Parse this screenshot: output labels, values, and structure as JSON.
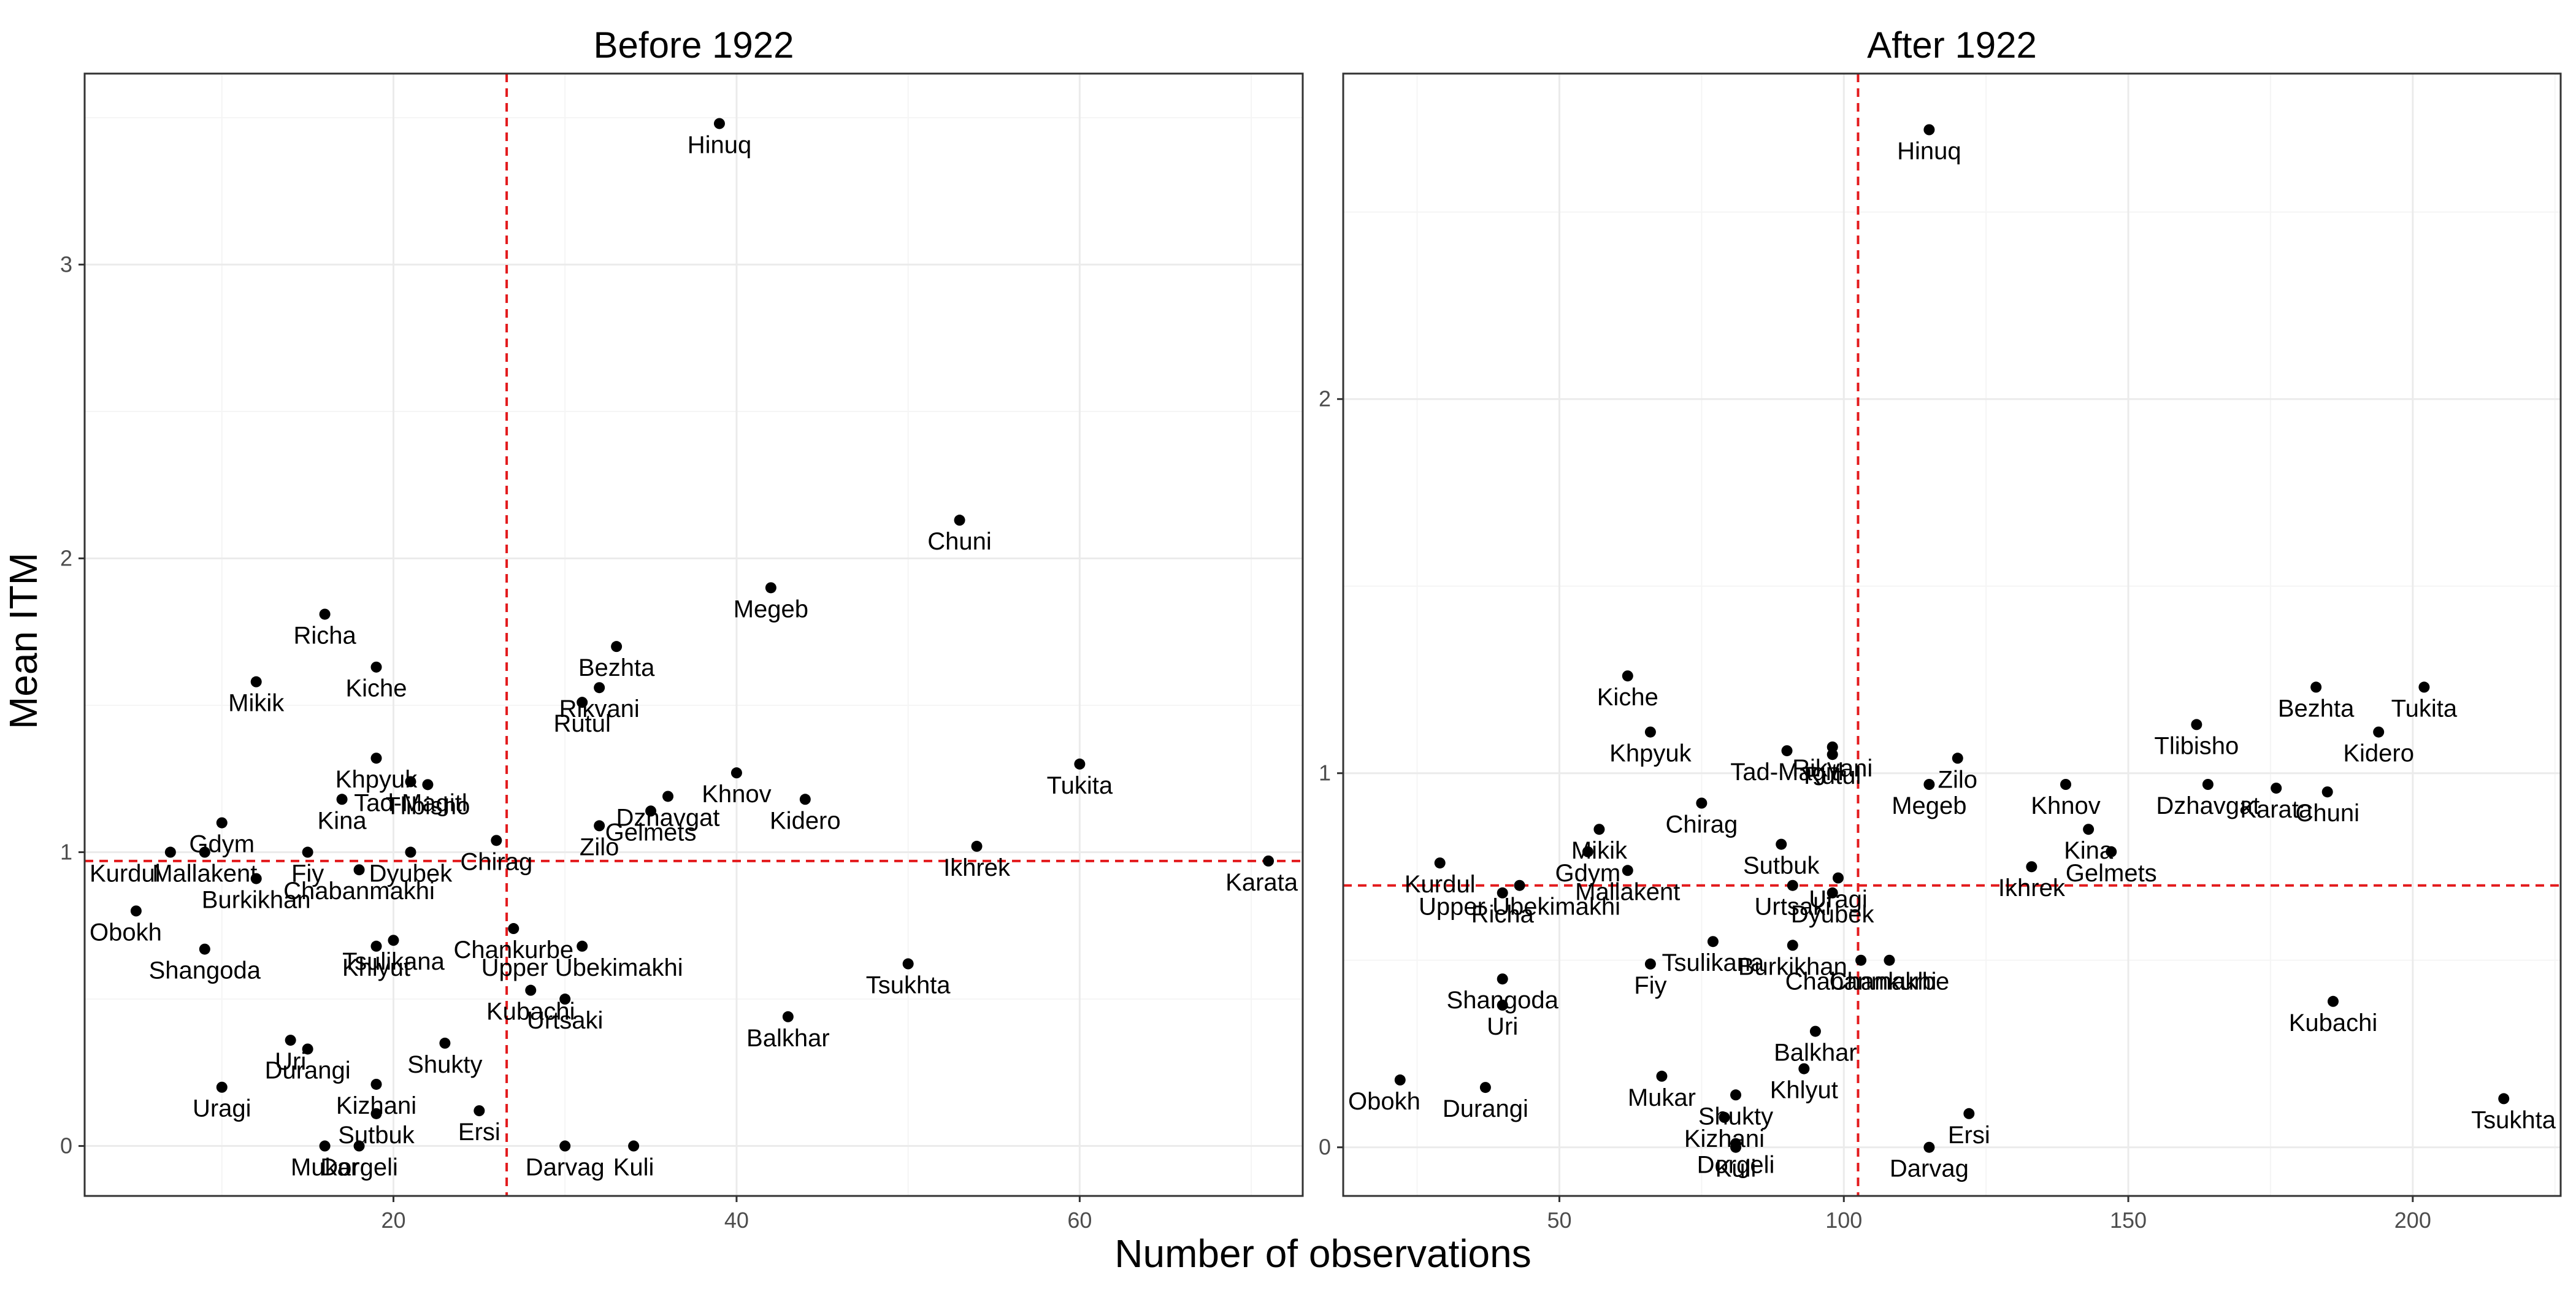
{
  "figure": {
    "ylabel": "Mean ITM",
    "xlabel": "Number of observations"
  },
  "colors": {
    "point": "#000000",
    "reference_line": "#e31a1c",
    "grid_major": "#ebebeb",
    "grid_minor": "#f5f5f5",
    "panel_border": "#333333",
    "text": "#000000",
    "tick_text": "#4d4d4d"
  },
  "chart_data": [
    {
      "type": "scatter",
      "title": "Before 1922",
      "xlabel": "Number of observations",
      "ylabel": "Mean ITM",
      "xlim": [
        2,
        73
      ],
      "ylim": [
        -0.17,
        3.65
      ],
      "xticks": [
        20,
        40,
        60
      ],
      "yticks": [
        0,
        1,
        2,
        3
      ],
      "grid": true,
      "reference_lines": {
        "x": 26.6,
        "y": 0.97
      },
      "points": [
        {
          "label": "Hinuq",
          "x": 39,
          "y": 3.48
        },
        {
          "label": "Chuni",
          "x": 53,
          "y": 2.13
        },
        {
          "label": "Megeb",
          "x": 42,
          "y": 1.9
        },
        {
          "label": "Richa",
          "x": 16,
          "y": 1.81
        },
        {
          "label": "Bezhta",
          "x": 33,
          "y": 1.7
        },
        {
          "label": "Kiche",
          "x": 19,
          "y": 1.63
        },
        {
          "label": "Mikik",
          "x": 12,
          "y": 1.58
        },
        {
          "label": "Rutul",
          "x": 31,
          "y": 1.51
        },
        {
          "label": "Rikvani",
          "x": 32,
          "y": 1.56
        },
        {
          "label": "Khpyuk",
          "x": 19,
          "y": 1.32
        },
        {
          "label": "Tukita",
          "x": 60,
          "y": 1.3
        },
        {
          "label": "Khnov",
          "x": 40,
          "y": 1.27
        },
        {
          "label": "Tlibisho",
          "x": 22,
          "y": 1.23
        },
        {
          "label": "Tad-Magitl",
          "x": 21,
          "y": 1.24
        },
        {
          "label": "Dzhavgat",
          "x": 36,
          "y": 1.19
        },
        {
          "label": "Kidero",
          "x": 44,
          "y": 1.18
        },
        {
          "label": "Kina",
          "x": 17,
          "y": 1.18
        },
        {
          "label": "Gelmets",
          "x": 35,
          "y": 1.14
        },
        {
          "label": "Gdym",
          "x": 10,
          "y": 1.1
        },
        {
          "label": "Zilo",
          "x": 32,
          "y": 1.09
        },
        {
          "label": "Kurdul",
          "x": 7,
          "y": 1.0
        },
        {
          "label": "Mallakent",
          "x": 9,
          "y": 1.0
        },
        {
          "label": "Chirag",
          "x": 26,
          "y": 1.04
        },
        {
          "label": "Ikhrek",
          "x": 54,
          "y": 1.02
        },
        {
          "label": "Fiy",
          "x": 15,
          "y": 1.0
        },
        {
          "label": "Dyubek",
          "x": 21,
          "y": 1.0
        },
        {
          "label": "Karata",
          "x": 71,
          "y": 0.97
        },
        {
          "label": "Chabanmakhi",
          "x": 18,
          "y": 0.94
        },
        {
          "label": "Burkikhan",
          "x": 12,
          "y": 0.91
        },
        {
          "label": "Obokh",
          "x": 5,
          "y": 0.8
        },
        {
          "label": "Chankurbe",
          "x": 27,
          "y": 0.74
        },
        {
          "label": "Tsulikana",
          "x": 20,
          "y": 0.7
        },
        {
          "label": "Khlyut",
          "x": 19,
          "y": 0.68
        },
        {
          "label": "Upper Ubekimakhi",
          "x": 31,
          "y": 0.68
        },
        {
          "label": "Shangoda",
          "x": 9,
          "y": 0.67
        },
        {
          "label": "Tsukhta",
          "x": 50,
          "y": 0.62
        },
        {
          "label": "Kubachi",
          "x": 28,
          "y": 0.53
        },
        {
          "label": "Urtsaki",
          "x": 30,
          "y": 0.5
        },
        {
          "label": "Balkhar",
          "x": 43,
          "y": 0.44
        },
        {
          "label": "Uri",
          "x": 14,
          "y": 0.36
        },
        {
          "label": "Shukty",
          "x": 23,
          "y": 0.35
        },
        {
          "label": "Durangi",
          "x": 15,
          "y": 0.33
        },
        {
          "label": "Kizhani",
          "x": 19,
          "y": 0.21
        },
        {
          "label": "Uragi",
          "x": 10,
          "y": 0.2
        },
        {
          "label": "Ersi",
          "x": 25,
          "y": 0.12
        },
        {
          "label": "Sutbuk",
          "x": 19,
          "y": 0.11
        },
        {
          "label": "Mukar",
          "x": 16,
          "y": 0.0
        },
        {
          "label": "Dorgeli",
          "x": 18,
          "y": 0.0
        },
        {
          "label": "Darvag",
          "x": 30,
          "y": 0.0
        },
        {
          "label": "Kuli",
          "x": 34,
          "y": 0.0
        }
      ]
    },
    {
      "type": "scatter",
      "title": "After 1922",
      "xlabel": "Number of observations",
      "ylabel": "Mean ITM",
      "xlim": [
        12,
        226
      ],
      "ylim": [
        -0.13,
        2.87
      ],
      "xticks": [
        50,
        100,
        150,
        200
      ],
      "yticks": [
        0,
        1,
        2
      ],
      "grid": true,
      "reference_lines": {
        "x": 102.5,
        "y": 0.7
      },
      "points": [
        {
          "label": "Hinuq",
          "x": 115,
          "y": 2.72
        },
        {
          "label": "Kiche",
          "x": 62,
          "y": 1.26
        },
        {
          "label": "Bezhta",
          "x": 183,
          "y": 1.23
        },
        {
          "label": "Tukita",
          "x": 202,
          "y": 1.23
        },
        {
          "label": "Tlibisho",
          "x": 162,
          "y": 1.13
        },
        {
          "label": "Kidero",
          "x": 194,
          "y": 1.11
        },
        {
          "label": "Khpyuk",
          "x": 66,
          "y": 1.11
        },
        {
          "label": "Rikvani",
          "x": 98,
          "y": 1.07
        },
        {
          "label": "Tad-Magitl",
          "x": 90,
          "y": 1.06
        },
        {
          "label": "Rutul",
          "x": 98,
          "y": 1.05
        },
        {
          "label": "Zilo",
          "x": 120,
          "y": 1.04
        },
        {
          "label": "Megeb",
          "x": 115,
          "y": 0.97
        },
        {
          "label": "Khnov",
          "x": 139,
          "y": 0.97
        },
        {
          "label": "Dzhavgat",
          "x": 164,
          "y": 0.97
        },
        {
          "label": "Karata",
          "x": 176,
          "y": 0.96
        },
        {
          "label": "Chuni",
          "x": 185,
          "y": 0.95
        },
        {
          "label": "Chirag",
          "x": 75,
          "y": 0.92
        },
        {
          "label": "Mikik",
          "x": 57,
          "y": 0.85
        },
        {
          "label": "Kina",
          "x": 143,
          "y": 0.85
        },
        {
          "label": "Sutbuk",
          "x": 89,
          "y": 0.81
        },
        {
          "label": "Gelmets",
          "x": 147,
          "y": 0.79
        },
        {
          "label": "Gdym",
          "x": 55,
          "y": 0.79
        },
        {
          "label": "Kurdul",
          "x": 29,
          "y": 0.76
        },
        {
          "label": "Ikhrek",
          "x": 133,
          "y": 0.75
        },
        {
          "label": "Mallakent",
          "x": 62,
          "y": 0.74
        },
        {
          "label": "Uragi",
          "x": 99,
          "y": 0.72
        },
        {
          "label": "Urtsaki",
          "x": 91,
          "y": 0.7
        },
        {
          "label": "Upper Ubekimakhi",
          "x": 43,
          "y": 0.7
        },
        {
          "label": "Richa",
          "x": 40,
          "y": 0.68
        },
        {
          "label": "Dyubek",
          "x": 98,
          "y": 0.68
        },
        {
          "label": "Burkikhan",
          "x": 91,
          "y": 0.54
        },
        {
          "label": "Tsulikana",
          "x": 77,
          "y": 0.55
        },
        {
          "label": "Chabanmakhi",
          "x": 103,
          "y": 0.5
        },
        {
          "label": "Chankurbe",
          "x": 108,
          "y": 0.5
        },
        {
          "label": "Fiy",
          "x": 66,
          "y": 0.49
        },
        {
          "label": "Shangoda",
          "x": 40,
          "y": 0.45
        },
        {
          "label": "Kubachi",
          "x": 186,
          "y": 0.39
        },
        {
          "label": "Uri",
          "x": 40,
          "y": 0.38
        },
        {
          "label": "Balkhar",
          "x": 95,
          "y": 0.31
        },
        {
          "label": "Khlyut",
          "x": 93,
          "y": 0.21
        },
        {
          "label": "Mukar",
          "x": 68,
          "y": 0.19
        },
        {
          "label": "Obokh",
          "x": 22,
          "y": 0.18
        },
        {
          "label": "Durangi",
          "x": 37,
          "y": 0.16
        },
        {
          "label": "Shukty",
          "x": 81,
          "y": 0.14
        },
        {
          "label": "Tsukhta",
          "x": 216,
          "y": 0.13
        },
        {
          "label": "Ersi",
          "x": 122,
          "y": 0.09
        },
        {
          "label": "Kizhani",
          "x": 79,
          "y": 0.08
        },
        {
          "label": "Dorgeli",
          "x": 81,
          "y": 0.01
        },
        {
          "label": "Kuli",
          "x": 81,
          "y": 0.0
        },
        {
          "label": "Darvag",
          "x": 115,
          "y": 0.0
        }
      ]
    }
  ]
}
